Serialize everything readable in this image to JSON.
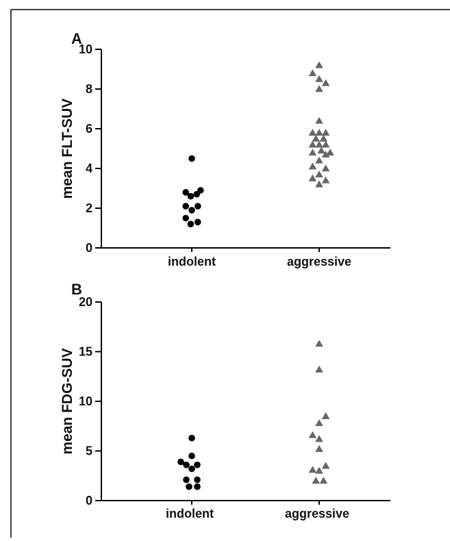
{
  "chart_data": [
    {
      "type": "scatter",
      "panel": "A",
      "ylabel": "mean FLT-SUV",
      "xlabel": "",
      "title": "",
      "ylim": [
        0,
        10
      ],
      "yticks": [
        0,
        2,
        4,
        6,
        8,
        10
      ],
      "categories": [
        "indolent",
        "aggressive"
      ],
      "series": [
        {
          "category": "indolent",
          "marker": "circle",
          "color": "#000000",
          "points": [
            {
              "x": 0.0,
              "y": 4.5
            },
            {
              "x": -0.11,
              "y": 2.8
            },
            {
              "x": 0.16,
              "y": 2.9
            },
            {
              "x": -0.02,
              "y": 2.6
            },
            {
              "x": 0.09,
              "y": 2.7
            },
            {
              "x": -0.11,
              "y": 2.1
            },
            {
              "x": 0.11,
              "y": 2.1
            },
            {
              "x": 0.0,
              "y": 1.9
            },
            {
              "x": -0.11,
              "y": 1.5
            },
            {
              "x": 0.11,
              "y": 1.3
            },
            {
              "x": -0.02,
              "y": 1.2
            }
          ]
        },
        {
          "category": "aggressive",
          "marker": "triangle",
          "color": "#666666",
          "points": [
            {
              "x": 0.0,
              "y": 9.2
            },
            {
              "x": -0.12,
              "y": 8.8
            },
            {
              "x": 0.0,
              "y": 8.5
            },
            {
              "x": 0.12,
              "y": 8.3
            },
            {
              "x": 0.0,
              "y": 8.0
            },
            {
              "x": 0.0,
              "y": 6.4
            },
            {
              "x": -0.12,
              "y": 5.8
            },
            {
              "x": 0.0,
              "y": 5.8
            },
            {
              "x": 0.12,
              "y": 5.8
            },
            {
              "x": -0.06,
              "y": 5.5
            },
            {
              "x": 0.08,
              "y": 5.5
            },
            {
              "x": -0.12,
              "y": 5.2
            },
            {
              "x": 0.0,
              "y": 5.2
            },
            {
              "x": 0.12,
              "y": 5.2
            },
            {
              "x": -0.12,
              "y": 4.8
            },
            {
              "x": 0.04,
              "y": 4.9
            },
            {
              "x": 0.2,
              "y": 4.8
            },
            {
              "x": 0.12,
              "y": 4.7
            },
            {
              "x": 0.0,
              "y": 4.4
            },
            {
              "x": -0.12,
              "y": 4.1
            },
            {
              "x": 0.12,
              "y": 4.0
            },
            {
              "x": 0.0,
              "y": 3.7
            },
            {
              "x": -0.12,
              "y": 3.5
            },
            {
              "x": 0.12,
              "y": 3.4
            },
            {
              "x": 0.0,
              "y": 3.2
            }
          ]
        }
      ]
    },
    {
      "type": "scatter",
      "panel": "B",
      "ylabel": "mean FDG-SUV",
      "xlabel": "",
      "title": "",
      "ylim": [
        0,
        20
      ],
      "yticks": [
        0,
        5,
        10,
        15,
        20
      ],
      "categories": [
        "indolent",
        "aggressive"
      ],
      "series": [
        {
          "category": "indolent",
          "marker": "circle",
          "color": "#000000",
          "points": [
            {
              "x": 0.0,
              "y": 6.3
            },
            {
              "x": 0.0,
              "y": 4.5
            },
            {
              "x": -0.2,
              "y": 3.9
            },
            {
              "x": -0.1,
              "y": 3.6
            },
            {
              "x": 0.1,
              "y": 3.6
            },
            {
              "x": 0.0,
              "y": 3.2
            },
            {
              "x": -0.1,
              "y": 2.1
            },
            {
              "x": 0.1,
              "y": 2.1
            },
            {
              "x": -0.05,
              "y": 1.4
            },
            {
              "x": 0.1,
              "y": 1.4
            }
          ]
        },
        {
          "category": "aggressive",
          "marker": "triangle",
          "color": "#666666",
          "points": [
            {
              "x": 0.0,
              "y": 15.8
            },
            {
              "x": 0.0,
              "y": 13.2
            },
            {
              "x": 0.12,
              "y": 8.5
            },
            {
              "x": 0.0,
              "y": 7.8
            },
            {
              "x": -0.12,
              "y": 6.6
            },
            {
              "x": 0.0,
              "y": 6.2
            },
            {
              "x": 0.0,
              "y": 5.2
            },
            {
              "x": 0.12,
              "y": 3.5
            },
            {
              "x": -0.12,
              "y": 3.1
            },
            {
              "x": 0.0,
              "y": 3.0
            },
            {
              "x": -0.06,
              "y": 2.0
            },
            {
              "x": 0.08,
              "y": 2.0
            }
          ]
        }
      ]
    }
  ]
}
